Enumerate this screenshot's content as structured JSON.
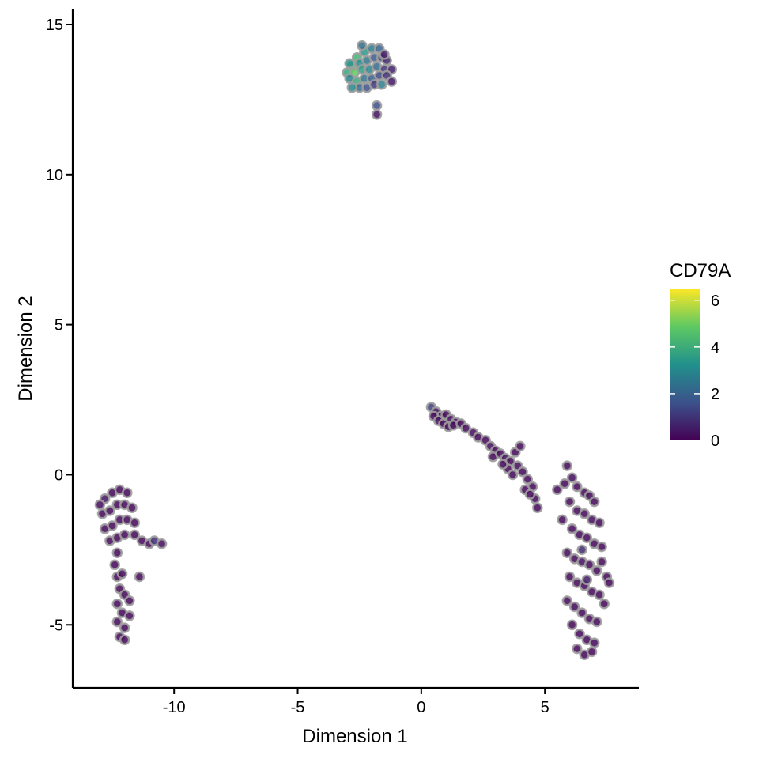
{
  "chart_data": {
    "type": "scatter",
    "title": "",
    "xlabel": "Dimension 1",
    "ylabel": "Dimension 2",
    "xlim": [
      -14.1,
      8.8
    ],
    "ylim": [
      -7.1,
      15.5
    ],
    "x_ticks": [
      -10,
      -5,
      0,
      5
    ],
    "x_tick_labels": [
      "-10",
      "-5",
      "0",
      "5"
    ],
    "y_ticks": [
      -5,
      0,
      5,
      10,
      15
    ],
    "y_tick_labels": [
      "-5",
      "0",
      "5",
      "10",
      "15"
    ],
    "grid": false,
    "legend": {
      "title": "CD79A",
      "placement": "right",
      "type": "colorbar",
      "range": [
        0,
        6.5
      ],
      "ticks": [
        0,
        2,
        4,
        6
      ],
      "tick_labels": [
        "0",
        "2",
        "4",
        "6"
      ],
      "colors": [
        "#440154",
        "#3b528b",
        "#21918c",
        "#5ec962",
        "#fde725"
      ]
    },
    "point_stroke_color": "#9e9e9e",
    "clusters": [
      {
        "points": [
          [
            -2.6,
            13.9,
            4.2
          ],
          [
            -2.3,
            14.1,
            3.4
          ],
          [
            -2.0,
            14.2,
            2.6
          ],
          [
            -1.7,
            14.2,
            2.0
          ],
          [
            -2.8,
            13.6,
            4.6
          ],
          [
            -2.5,
            13.7,
            3.1
          ],
          [
            -2.2,
            13.8,
            2.5
          ],
          [
            -1.9,
            13.9,
            1.8
          ],
          [
            -1.6,
            13.9,
            1.2
          ],
          [
            -1.4,
            13.8,
            0.8
          ],
          [
            -3.0,
            13.4,
            3.8
          ],
          [
            -2.7,
            13.4,
            4.9
          ],
          [
            -2.4,
            13.5,
            3.6
          ],
          [
            -2.1,
            13.5,
            2.9
          ],
          [
            -1.8,
            13.6,
            2.2
          ],
          [
            -1.5,
            13.5,
            1.0
          ],
          [
            -1.2,
            13.5,
            0.6
          ],
          [
            -2.9,
            13.2,
            2.8
          ],
          [
            -2.6,
            13.1,
            3.9
          ],
          [
            -2.3,
            13.2,
            2.4
          ],
          [
            -2.0,
            13.2,
            1.9
          ],
          [
            -1.7,
            13.3,
            1.4
          ],
          [
            -1.4,
            13.3,
            0.9
          ],
          [
            -1.2,
            13.1,
            0.4
          ],
          [
            -2.5,
            12.9,
            2.2
          ],
          [
            -2.2,
            12.9,
            1.6
          ],
          [
            -1.9,
            13.0,
            1.1
          ],
          [
            -1.6,
            13.0,
            2.7
          ],
          [
            -2.8,
            12.9,
            3.0
          ],
          [
            -2.4,
            14.3,
            2.3
          ],
          [
            -1.8,
            12.3,
            1.5
          ],
          [
            -1.8,
            12.0,
            0.3
          ],
          [
            -1.5,
            14.0,
            0.5
          ],
          [
            -2.9,
            13.7,
            3.3
          ]
        ]
      },
      {
        "points": [
          [
            0.4,
            2.25,
            1.2
          ],
          [
            0.6,
            2.1,
            0.3
          ],
          [
            0.8,
            1.95,
            0.2
          ],
          [
            1.0,
            2.0,
            0.1
          ],
          [
            1.2,
            1.85,
            0.2
          ],
          [
            1.4,
            1.75,
            0.1
          ],
          [
            0.5,
            1.95,
            0.1
          ],
          [
            0.7,
            1.8,
            0.2
          ],
          [
            0.9,
            1.7,
            0.1
          ],
          [
            1.1,
            1.6,
            0.1
          ],
          [
            1.3,
            1.65,
            0.2
          ],
          [
            1.6,
            1.7,
            0.1
          ],
          [
            1.8,
            1.55,
            0.1
          ],
          [
            2.1,
            1.4,
            0.2
          ],
          [
            2.3,
            1.25,
            0.1
          ],
          [
            2.6,
            1.15,
            0.1
          ],
          [
            2.8,
            0.95,
            0.2
          ],
          [
            3.0,
            0.8,
            0.1
          ],
          [
            2.9,
            0.6,
            0.1
          ],
          [
            3.2,
            0.7,
            0.1
          ],
          [
            3.4,
            0.55,
            0.2
          ],
          [
            3.6,
            0.45,
            0.1
          ],
          [
            3.8,
            0.75,
            0.1
          ],
          [
            4.0,
            0.95,
            0.1
          ],
          [
            3.5,
            0.2,
            0.1
          ],
          [
            3.7,
            0.0,
            0.1
          ],
          [
            3.9,
            0.3,
            0.2
          ],
          [
            4.1,
            0.1,
            0.1
          ],
          [
            4.3,
            -0.15,
            0.1
          ],
          [
            4.5,
            -0.4,
            0.1
          ],
          [
            4.2,
            -0.5,
            0.1
          ],
          [
            4.6,
            -0.8,
            0.1
          ],
          [
            4.7,
            -1.1,
            0.1
          ],
          [
            3.3,
            0.35,
            0.1
          ],
          [
            4.4,
            -0.65,
            0.1
          ]
        ]
      },
      {
        "points": [
          [
            5.5,
            -0.5,
            0.1
          ],
          [
            5.8,
            -0.3,
            0.1
          ],
          [
            5.9,
            0.3,
            0.1
          ],
          [
            6.1,
            -0.1,
            0.2
          ],
          [
            6.3,
            -0.4,
            0.1
          ],
          [
            6.6,
            -0.6,
            0.1
          ],
          [
            6.8,
            -0.7,
            0.1
          ],
          [
            7.0,
            -0.9,
            0.1
          ],
          [
            6.0,
            -0.9,
            0.1
          ],
          [
            6.3,
            -1.2,
            0.1
          ],
          [
            6.6,
            -1.3,
            0.1
          ],
          [
            6.9,
            -1.5,
            0.2
          ],
          [
            7.2,
            -1.6,
            0.1
          ],
          [
            6.1,
            -1.8,
            0.1
          ],
          [
            6.4,
            -2.0,
            0.1
          ],
          [
            6.7,
            -2.1,
            0.1
          ],
          [
            7.0,
            -2.3,
            0.1
          ],
          [
            7.3,
            -2.4,
            0.1
          ],
          [
            5.9,
            -2.6,
            0.1
          ],
          [
            6.2,
            -2.8,
            0.1
          ],
          [
            6.5,
            -2.9,
            0.2
          ],
          [
            6.8,
            -3.0,
            0.1
          ],
          [
            7.1,
            -3.2,
            0.1
          ],
          [
            7.5,
            -3.4,
            0.1
          ],
          [
            6.0,
            -3.4,
            0.1
          ],
          [
            6.3,
            -3.6,
            0.1
          ],
          [
            6.6,
            -3.7,
            0.1
          ],
          [
            6.9,
            -3.9,
            0.1
          ],
          [
            7.2,
            -4.0,
            0.1
          ],
          [
            7.4,
            -4.3,
            0.1
          ],
          [
            5.9,
            -4.2,
            0.1
          ],
          [
            6.2,
            -4.4,
            0.1
          ],
          [
            6.5,
            -4.6,
            0.1
          ],
          [
            6.8,
            -4.8,
            0.1
          ],
          [
            7.1,
            -4.9,
            0.1
          ],
          [
            6.1,
            -5.0,
            0.1
          ],
          [
            6.4,
            -5.3,
            0.1
          ],
          [
            6.7,
            -5.5,
            0.1
          ],
          [
            7.0,
            -5.6,
            0.1
          ],
          [
            6.3,
            -5.8,
            0.1
          ],
          [
            6.6,
            -6.0,
            0.1
          ],
          [
            6.9,
            -5.9,
            0.1
          ],
          [
            7.6,
            -3.6,
            0.1
          ],
          [
            7.3,
            -2.9,
            0.1
          ],
          [
            5.7,
            -1.5,
            0.1
          ],
          [
            6.5,
            -2.5,
            0.8
          ],
          [
            6.7,
            -3.5,
            0.5
          ]
        ]
      },
      {
        "points": [
          [
            -12.8,
            -0.8,
            0.3
          ],
          [
            -12.5,
            -0.6,
            0.1
          ],
          [
            -12.2,
            -0.5,
            0.1
          ],
          [
            -11.9,
            -0.6,
            0.1
          ],
          [
            -12.9,
            -1.3,
            0.1
          ],
          [
            -12.6,
            -1.2,
            0.1
          ],
          [
            -12.3,
            -1.0,
            0.1
          ],
          [
            -12.0,
            -1.0,
            0.1
          ],
          [
            -11.7,
            -1.1,
            0.1
          ],
          [
            -12.8,
            -1.8,
            0.1
          ],
          [
            -12.5,
            -1.7,
            0.1
          ],
          [
            -12.2,
            -1.5,
            0.1
          ],
          [
            -11.9,
            -1.5,
            0.1
          ],
          [
            -11.6,
            -1.6,
            0.1
          ],
          [
            -12.6,
            -2.2,
            0.1
          ],
          [
            -12.3,
            -2.1,
            0.1
          ],
          [
            -12.0,
            -2.0,
            0.1
          ],
          [
            -11.6,
            -2.0,
            0.1
          ],
          [
            -11.3,
            -2.2,
            0.1
          ],
          [
            -11.0,
            -2.3,
            0.1
          ],
          [
            -10.8,
            -2.2,
            0.9
          ],
          [
            -10.5,
            -2.3,
            0.2
          ],
          [
            -12.3,
            -2.6,
            0.1
          ],
          [
            -12.4,
            -3.0,
            0.1
          ],
          [
            -12.3,
            -3.4,
            0.1
          ],
          [
            -12.1,
            -3.3,
            0.1
          ],
          [
            -12.2,
            -3.8,
            0.1
          ],
          [
            -12.0,
            -4.0,
            0.1
          ],
          [
            -11.8,
            -4.2,
            0.1
          ],
          [
            -12.3,
            -4.3,
            0.1
          ],
          [
            -12.1,
            -4.6,
            0.1
          ],
          [
            -11.8,
            -4.7,
            0.1
          ],
          [
            -12.3,
            -4.9,
            0.1
          ],
          [
            -12.0,
            -5.1,
            0.1
          ],
          [
            -12.2,
            -5.4,
            0.1
          ],
          [
            -12.0,
            -5.5,
            0.1
          ],
          [
            -11.4,
            -3.4,
            0.1
          ],
          [
            -13.0,
            -1.0,
            0.2
          ]
        ]
      }
    ]
  }
}
